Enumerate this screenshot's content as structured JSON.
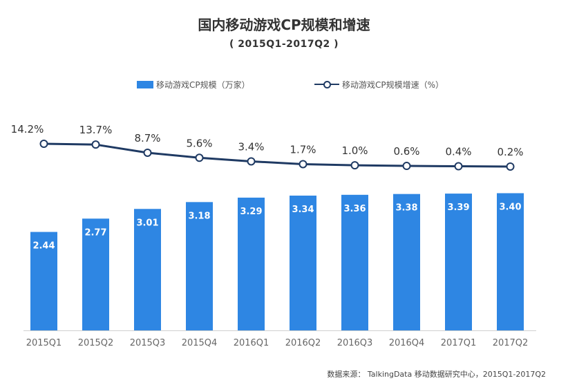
{
  "chart_data": {
    "type": "bar",
    "title": "国内移动游戏CP规模和增速",
    "subtitle": "( 2015Q1-2017Q2 )",
    "categories": [
      "2015Q1",
      "2015Q2",
      "2015Q3",
      "2015Q4",
      "2016Q1",
      "2016Q2",
      "2016Q3",
      "2016Q4",
      "2017Q1",
      "2017Q2"
    ],
    "series": [
      {
        "name": "移动游戏CP规模（万家）",
        "type": "bar",
        "color": "#2e86e3",
        "values": [
          2.44,
          2.77,
          3.01,
          3.18,
          3.29,
          3.34,
          3.36,
          3.38,
          3.39,
          3.4
        ],
        "labels": [
          "2.44",
          "2.77",
          "3.01",
          "3.18",
          "3.29",
          "3.34",
          "3.36",
          "3.38",
          "3.39",
          "3.40"
        ]
      },
      {
        "name": "移动游戏CP规模增速（%）",
        "type": "line",
        "color": "#1f3a63",
        "values": [
          14.2,
          13.7,
          8.7,
          5.6,
          3.4,
          1.7,
          1.0,
          0.6,
          0.4,
          0.2
        ],
        "labels": [
          "14.2%",
          "13.7%",
          "8.7%",
          "5.6%",
          "3.4%",
          "1.7%",
          "1.0%",
          "0.6%",
          "0.4%",
          "0.2%"
        ]
      }
    ],
    "ylim": [
      0,
      3.6
    ],
    "y2lim": [
      0,
      40
    ],
    "legend_position": "top-center",
    "grid": false,
    "source": "数据来源： TalkingData 移动数据研究中心，2015Q1-2017Q2"
  }
}
